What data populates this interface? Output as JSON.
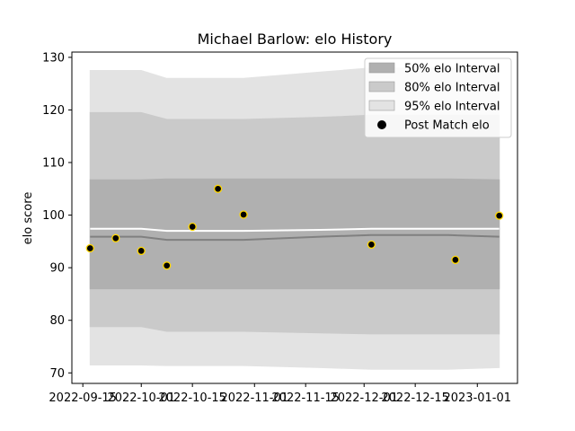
{
  "chart_data": {
    "type": "line",
    "title": "Michael Barlow: elo History",
    "xlabel": "",
    "ylabel": "elo score",
    "xlim": [
      "2022-09-12",
      "2023-01-12"
    ],
    "ylim": [
      68,
      131
    ],
    "grid": false,
    "legend_position": "top-right",
    "x_ticks": [
      "2022-09-15",
      "2022-10-01",
      "2022-10-15",
      "2022-11-01",
      "2022-11-15",
      "2022-12-01",
      "2022-12-15",
      "2023-01-01"
    ],
    "y_ticks": [
      70,
      80,
      90,
      100,
      110,
      120,
      130
    ],
    "band_dates": [
      "2022-09-17",
      "2022-09-24",
      "2022-10-01",
      "2022-10-08",
      "2022-10-15",
      "2022-10-22",
      "2022-10-29",
      "2022-11-19",
      "2022-12-03",
      "2022-12-10",
      "2022-12-24",
      "2023-01-07"
    ],
    "bands": [
      {
        "name": "95% elo Interval",
        "color": "#e3e3e3",
        "lower": [
          71.5,
          71.5,
          71.5,
          71.4,
          71.4,
          71.4,
          71.4,
          71.0,
          70.7,
          70.7,
          70.7,
          71.0
        ],
        "upper": [
          127.5,
          127.5,
          127.5,
          126.0,
          126.0,
          126.0,
          126.0,
          127.2,
          128.0,
          128.0,
          128.0,
          128.0
        ]
      },
      {
        "name": "80% elo Interval",
        "color": "#cacaca",
        "lower": [
          78.8,
          78.8,
          78.8,
          77.9,
          77.9,
          77.9,
          77.9,
          77.6,
          77.4,
          77.4,
          77.4,
          77.4
        ],
        "upper": [
          119.5,
          119.5,
          119.5,
          118.2,
          118.2,
          118.2,
          118.2,
          118.6,
          119.0,
          119.0,
          119.0,
          119.0
        ]
      },
      {
        "name": "50% elo Interval",
        "color": "#b0b0b0",
        "lower": [
          86.0,
          86.0,
          86.0,
          86.0,
          86.0,
          86.0,
          86.0,
          86.0,
          86.0,
          86.0,
          86.0,
          86.0
        ],
        "upper": [
          106.7,
          106.7,
          106.7,
          106.9,
          106.9,
          106.9,
          106.9,
          106.9,
          106.9,
          106.9,
          106.9,
          106.7
        ]
      }
    ],
    "mean_line": [
      95.9,
      95.9,
      95.9,
      95.3,
      95.3,
      95.3,
      95.3,
      95.9,
      96.2,
      96.2,
      96.2,
      95.9
    ],
    "upper_line": [
      97.4,
      97.4,
      97.4,
      97.0,
      97.0,
      97.0,
      97.0,
      97.2,
      97.4,
      97.4,
      97.4,
      97.4
    ],
    "series": [
      {
        "name": "Post Match elo",
        "points": [
          {
            "x": "2022-09-17",
            "y": 93.7
          },
          {
            "x": "2022-09-24",
            "y": 95.6
          },
          {
            "x": "2022-10-01",
            "y": 93.2
          },
          {
            "x": "2022-10-08",
            "y": 90.4
          },
          {
            "x": "2022-10-15",
            "y": 97.8
          },
          {
            "x": "2022-10-22",
            "y": 105.0
          },
          {
            "x": "2022-10-29",
            "y": 100.1
          },
          {
            "x": "2022-12-03",
            "y": 94.4
          },
          {
            "x": "2022-12-26",
            "y": 91.5
          },
          {
            "x": "2023-01-07",
            "y": 99.9
          }
        ]
      }
    ]
  }
}
